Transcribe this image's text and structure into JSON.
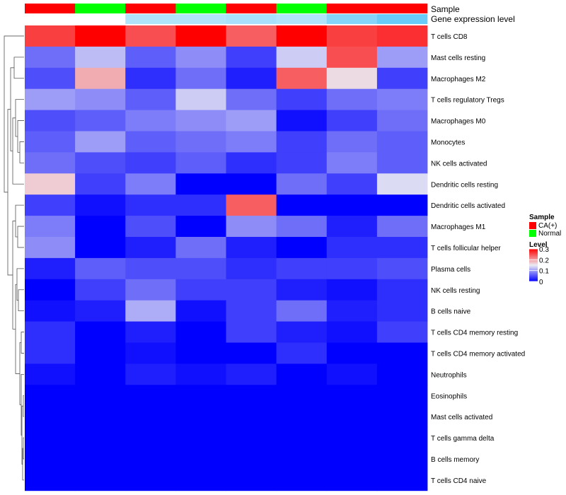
{
  "chart_data": {
    "type": "heatmap",
    "annotation_tracks": [
      "Sample",
      "Gene expression level"
    ],
    "rows": [
      "T cells CD8",
      "Mast cells resting",
      "Macrophages M2",
      "T cells regulatory  Tregs",
      "Macrophages M0",
      "Monocytes",
      "NK cells activated",
      "Dendritic cells resting",
      "Dendritic cells activated",
      "Macrophages M1",
      "T cells follicular helper",
      "Plasma cells",
      "NK cells resting",
      "B cells naive",
      "T cells CD4 memory resting",
      "T cells CD4 memory activated",
      "Neutrophils",
      "Eosinophils",
      "Mast cells activated",
      "T cells gamma delta",
      "B cells memory",
      "T cells CD4 naive"
    ],
    "column_samples": [
      "CA(+)",
      "Normal",
      "CA(+)",
      "Normal",
      "CA(+)",
      "Normal",
      "CA(+)",
      "CA(+)"
    ],
    "column_expression_levels": [
      0.0,
      0.0,
      0.09,
      0.09,
      0.1,
      0.09,
      0.14,
      0.17
    ],
    "values": [
      [
        0.26,
        0.3,
        0.25,
        0.3,
        0.24,
        0.3,
        0.26,
        0.27
      ],
      [
        0.07,
        0.12,
        0.06,
        0.09,
        0.04,
        0.13,
        0.25,
        0.1
      ],
      [
        0.05,
        0.19,
        0.03,
        0.07,
        0.02,
        0.24,
        0.16,
        0.04
      ],
      [
        0.1,
        0.09,
        0.06,
        0.13,
        0.07,
        0.04,
        0.07,
        0.08
      ],
      [
        0.05,
        0.06,
        0.08,
        0.09,
        0.1,
        0.01,
        0.04,
        0.07
      ],
      [
        0.06,
        0.1,
        0.06,
        0.07,
        0.08,
        0.04,
        0.07,
        0.06
      ],
      [
        0.07,
        0.05,
        0.04,
        0.06,
        0.03,
        0.04,
        0.08,
        0.06
      ],
      [
        0.17,
        0.04,
        0.08,
        0.0,
        0.0,
        0.07,
        0.04,
        0.14
      ],
      [
        0.04,
        0.01,
        0.03,
        0.03,
        0.24,
        0.0,
        0.0,
        0.0
      ],
      [
        0.08,
        0.0,
        0.05,
        0.0,
        0.09,
        0.07,
        0.02,
        0.07
      ],
      [
        0.09,
        0.0,
        0.02,
        0.07,
        0.02,
        0.0,
        0.03,
        0.03
      ],
      [
        0.02,
        0.06,
        0.05,
        0.05,
        0.03,
        0.04,
        0.04,
        0.05
      ],
      [
        0.0,
        0.04,
        0.07,
        0.04,
        0.04,
        0.02,
        0.01,
        0.03
      ],
      [
        0.01,
        0.02,
        0.11,
        0.01,
        0.04,
        0.07,
        0.02,
        0.03
      ],
      [
        0.03,
        0.0,
        0.02,
        0.0,
        0.04,
        0.02,
        0.01,
        0.04
      ],
      [
        0.03,
        0.0,
        0.01,
        0.0,
        0.0,
        0.03,
        0.0,
        0.0
      ],
      [
        0.01,
        0.0,
        0.02,
        0.01,
        0.02,
        0.0,
        0.01,
        0.0
      ],
      [
        0.0,
        0.0,
        0.0,
        0.0,
        0.0,
        0.0,
        0.0,
        0.0
      ],
      [
        0.0,
        0.0,
        0.0,
        0.0,
        0.0,
        0.0,
        0.0,
        0.0
      ],
      [
        0.0,
        0.0,
        0.0,
        0.0,
        0.0,
        0.0,
        0.0,
        0.0
      ],
      [
        0.0,
        0.0,
        0.0,
        0.0,
        0.0,
        0.0,
        0.0,
        0.0
      ],
      [
        0.0,
        0.0,
        0.0,
        0.0,
        0.0,
        0.0,
        0.0,
        0.0
      ]
    ],
    "color_scale": {
      "min": 0,
      "mid": 0.15,
      "max": 0.3,
      "low_color": "#0000ff",
      "mid_color": "#ecebf3",
      "high_color": "#ff0000"
    },
    "expression_scale": {
      "min": 0,
      "max": 0.2,
      "low_color": "#ffffff",
      "high_color": "#4fc3f7"
    },
    "legends": {
      "sample": {
        "title": "Sample",
        "items": [
          {
            "label": "CA(+)",
            "color": "#ff0000"
          },
          {
            "label": "Normal",
            "color": "#00ff00"
          }
        ]
      },
      "level": {
        "title": "Level",
        "ticks": [
          "0.3",
          "0.2",
          "0.1",
          "0"
        ]
      }
    },
    "dendrogram": "row",
    "legend_position": "right"
  }
}
